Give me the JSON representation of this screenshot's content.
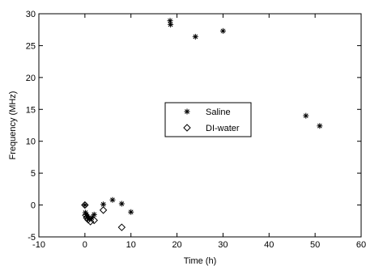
{
  "chart_data": {
    "type": "scatter",
    "title": "",
    "xlabel": "Time (h)",
    "ylabel": "Frequency (MHz)",
    "xlim": [
      -10,
      60
    ],
    "ylim": [
      -5,
      30
    ],
    "xticks": [
      "-10",
      "0",
      "10",
      "20",
      "30",
      "40",
      "50",
      "60"
    ],
    "yticks": [
      "-5",
      "0",
      "5",
      "10",
      "15",
      "20",
      "25",
      "30"
    ],
    "grid": false,
    "legend_position": "center-right",
    "series": [
      {
        "name": "Saline",
        "marker": "asterisk",
        "color": "#000000",
        "points": [
          {
            "x": 0,
            "y": 0
          },
          {
            "x": 0.1,
            "y": -1.2
          },
          {
            "x": 0.3,
            "y": -1.5
          },
          {
            "x": 0.5,
            "y": -1.8
          },
          {
            "x": 0.8,
            "y": -2.0
          },
          {
            "x": 1.0,
            "y": -2.2
          },
          {
            "x": 1.5,
            "y": -2.0
          },
          {
            "x": 2.0,
            "y": -1.5
          },
          {
            "x": 4.0,
            "y": 0.1
          },
          {
            "x": 6.0,
            "y": 0.8
          },
          {
            "x": 8.0,
            "y": 0.2
          },
          {
            "x": 10.0,
            "y": -1.1
          },
          {
            "x": 18.5,
            "y": 28.9
          },
          {
            "x": 18.6,
            "y": 28.3
          },
          {
            "x": 24.0,
            "y": 26.4
          },
          {
            "x": 30.0,
            "y": 27.3
          },
          {
            "x": 48.0,
            "y": 14.0
          },
          {
            "x": 51.0,
            "y": 12.4
          }
        ]
      },
      {
        "name": "DI-water",
        "marker": "diamond",
        "color": "#000000",
        "points": [
          {
            "x": 0,
            "y": 0
          },
          {
            "x": 0.2,
            "y": -1.6
          },
          {
            "x": 0.4,
            "y": -2.0
          },
          {
            "x": 0.7,
            "y": -2.3
          },
          {
            "x": 1.2,
            "y": -2.6
          },
          {
            "x": 2.0,
            "y": -2.4
          },
          {
            "x": 4.0,
            "y": -0.8
          },
          {
            "x": 8.0,
            "y": -3.5
          }
        ]
      }
    ]
  }
}
